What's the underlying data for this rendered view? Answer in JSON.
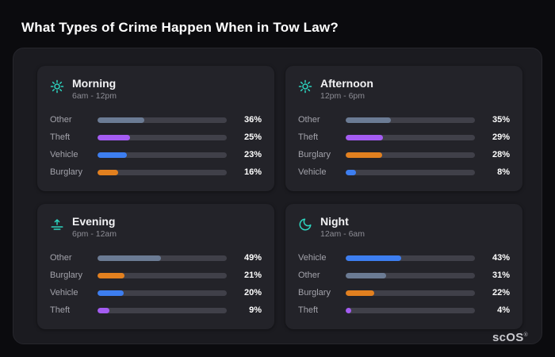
{
  "page": {
    "title": "What Types of Crime Happen When in Tow Law?",
    "brand": "scOS",
    "brand_mark": "®"
  },
  "colors": {
    "other": "#6b7b94",
    "theft": "#a45cf2",
    "vehicle": "#3d7ef0",
    "burglary": "#e2801f",
    "icon_accent": "#2dd4bf",
    "track": "#404049",
    "panel": "#1b1b20",
    "card": "#232329",
    "background": "#0b0b0e"
  },
  "chart_data": [
    {
      "type": "bar",
      "title": "Morning",
      "subtitle": "6am - 12pm",
      "icon": "sun-icon",
      "unit": "%",
      "xlim": [
        0,
        100
      ],
      "categories": [
        "Other",
        "Theft",
        "Vehicle",
        "Burglary"
      ],
      "values": [
        36,
        25,
        23,
        16
      ],
      "rows": [
        {
          "label": "Other",
          "value": 36,
          "percent": "36%",
          "color": "other"
        },
        {
          "label": "Theft",
          "value": 25,
          "percent": "25%",
          "color": "theft"
        },
        {
          "label": "Vehicle",
          "value": 23,
          "percent": "23%",
          "color": "vehicle"
        },
        {
          "label": "Burglary",
          "value": 16,
          "percent": "16%",
          "color": "burglary"
        }
      ]
    },
    {
      "type": "bar",
      "title": "Afternoon",
      "subtitle": "12pm - 6pm",
      "icon": "sun-icon",
      "unit": "%",
      "xlim": [
        0,
        100
      ],
      "categories": [
        "Other",
        "Theft",
        "Burglary",
        "Vehicle"
      ],
      "values": [
        35,
        29,
        28,
        8
      ],
      "rows": [
        {
          "label": "Other",
          "value": 35,
          "percent": "35%",
          "color": "other"
        },
        {
          "label": "Theft",
          "value": 29,
          "percent": "29%",
          "color": "theft"
        },
        {
          "label": "Burglary",
          "value": 28,
          "percent": "28%",
          "color": "burglary"
        },
        {
          "label": "Vehicle",
          "value": 8,
          "percent": "8%",
          "color": "vehicle"
        }
      ]
    },
    {
      "type": "bar",
      "title": "Evening",
      "subtitle": "6pm - 12am",
      "icon": "sunset-icon",
      "unit": "%",
      "xlim": [
        0,
        100
      ],
      "categories": [
        "Other",
        "Burglary",
        "Vehicle",
        "Theft"
      ],
      "values": [
        49,
        21,
        20,
        9
      ],
      "rows": [
        {
          "label": "Other",
          "value": 49,
          "percent": "49%",
          "color": "other"
        },
        {
          "label": "Burglary",
          "value": 21,
          "percent": "21%",
          "color": "burglary"
        },
        {
          "label": "Vehicle",
          "value": 20,
          "percent": "20%",
          "color": "vehicle"
        },
        {
          "label": "Theft",
          "value": 9,
          "percent": "9%",
          "color": "theft"
        }
      ]
    },
    {
      "type": "bar",
      "title": "Night",
      "subtitle": "12am - 6am",
      "icon": "moon-icon",
      "unit": "%",
      "xlim": [
        0,
        100
      ],
      "categories": [
        "Vehicle",
        "Other",
        "Burglary",
        "Theft"
      ],
      "values": [
        43,
        31,
        22,
        4
      ],
      "rows": [
        {
          "label": "Vehicle",
          "value": 43,
          "percent": "43%",
          "color": "vehicle"
        },
        {
          "label": "Other",
          "value": 31,
          "percent": "31%",
          "color": "other"
        },
        {
          "label": "Burglary",
          "value": 22,
          "percent": "22%",
          "color": "burglary"
        },
        {
          "label": "Theft",
          "value": 4,
          "percent": "4%",
          "color": "theft"
        }
      ]
    }
  ]
}
